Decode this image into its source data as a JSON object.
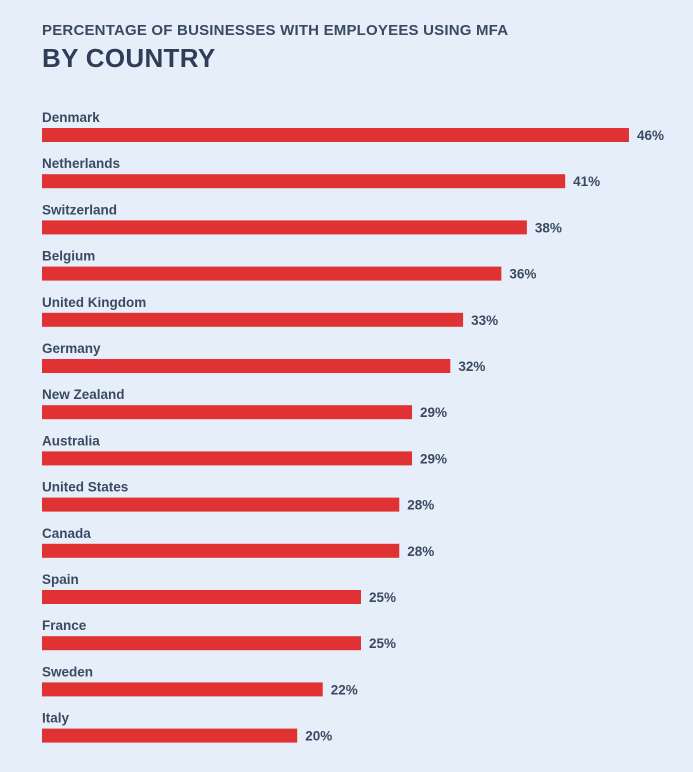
{
  "chart_data": {
    "type": "bar",
    "orientation": "horizontal",
    "subtitle": "PERCENTAGE OF BUSINESSES WITH EMPLOYEES USING MFA",
    "title": "BY COUNTRY",
    "categories": [
      "Denmark",
      "Netherlands",
      "Switzerland",
      "Belgium",
      "United Kingdom",
      "Germany",
      "New Zealand",
      "Australia",
      "United States",
      "Canada",
      "Spain",
      "France",
      "Sweden",
      "Italy"
    ],
    "values": [
      46,
      41,
      38,
      36,
      33,
      32,
      29,
      29,
      28,
      28,
      25,
      25,
      22,
      20
    ],
    "value_suffix": "%",
    "bar_color": "#e03232",
    "background": "#e6eff9",
    "grid": false,
    "legend": "none"
  }
}
